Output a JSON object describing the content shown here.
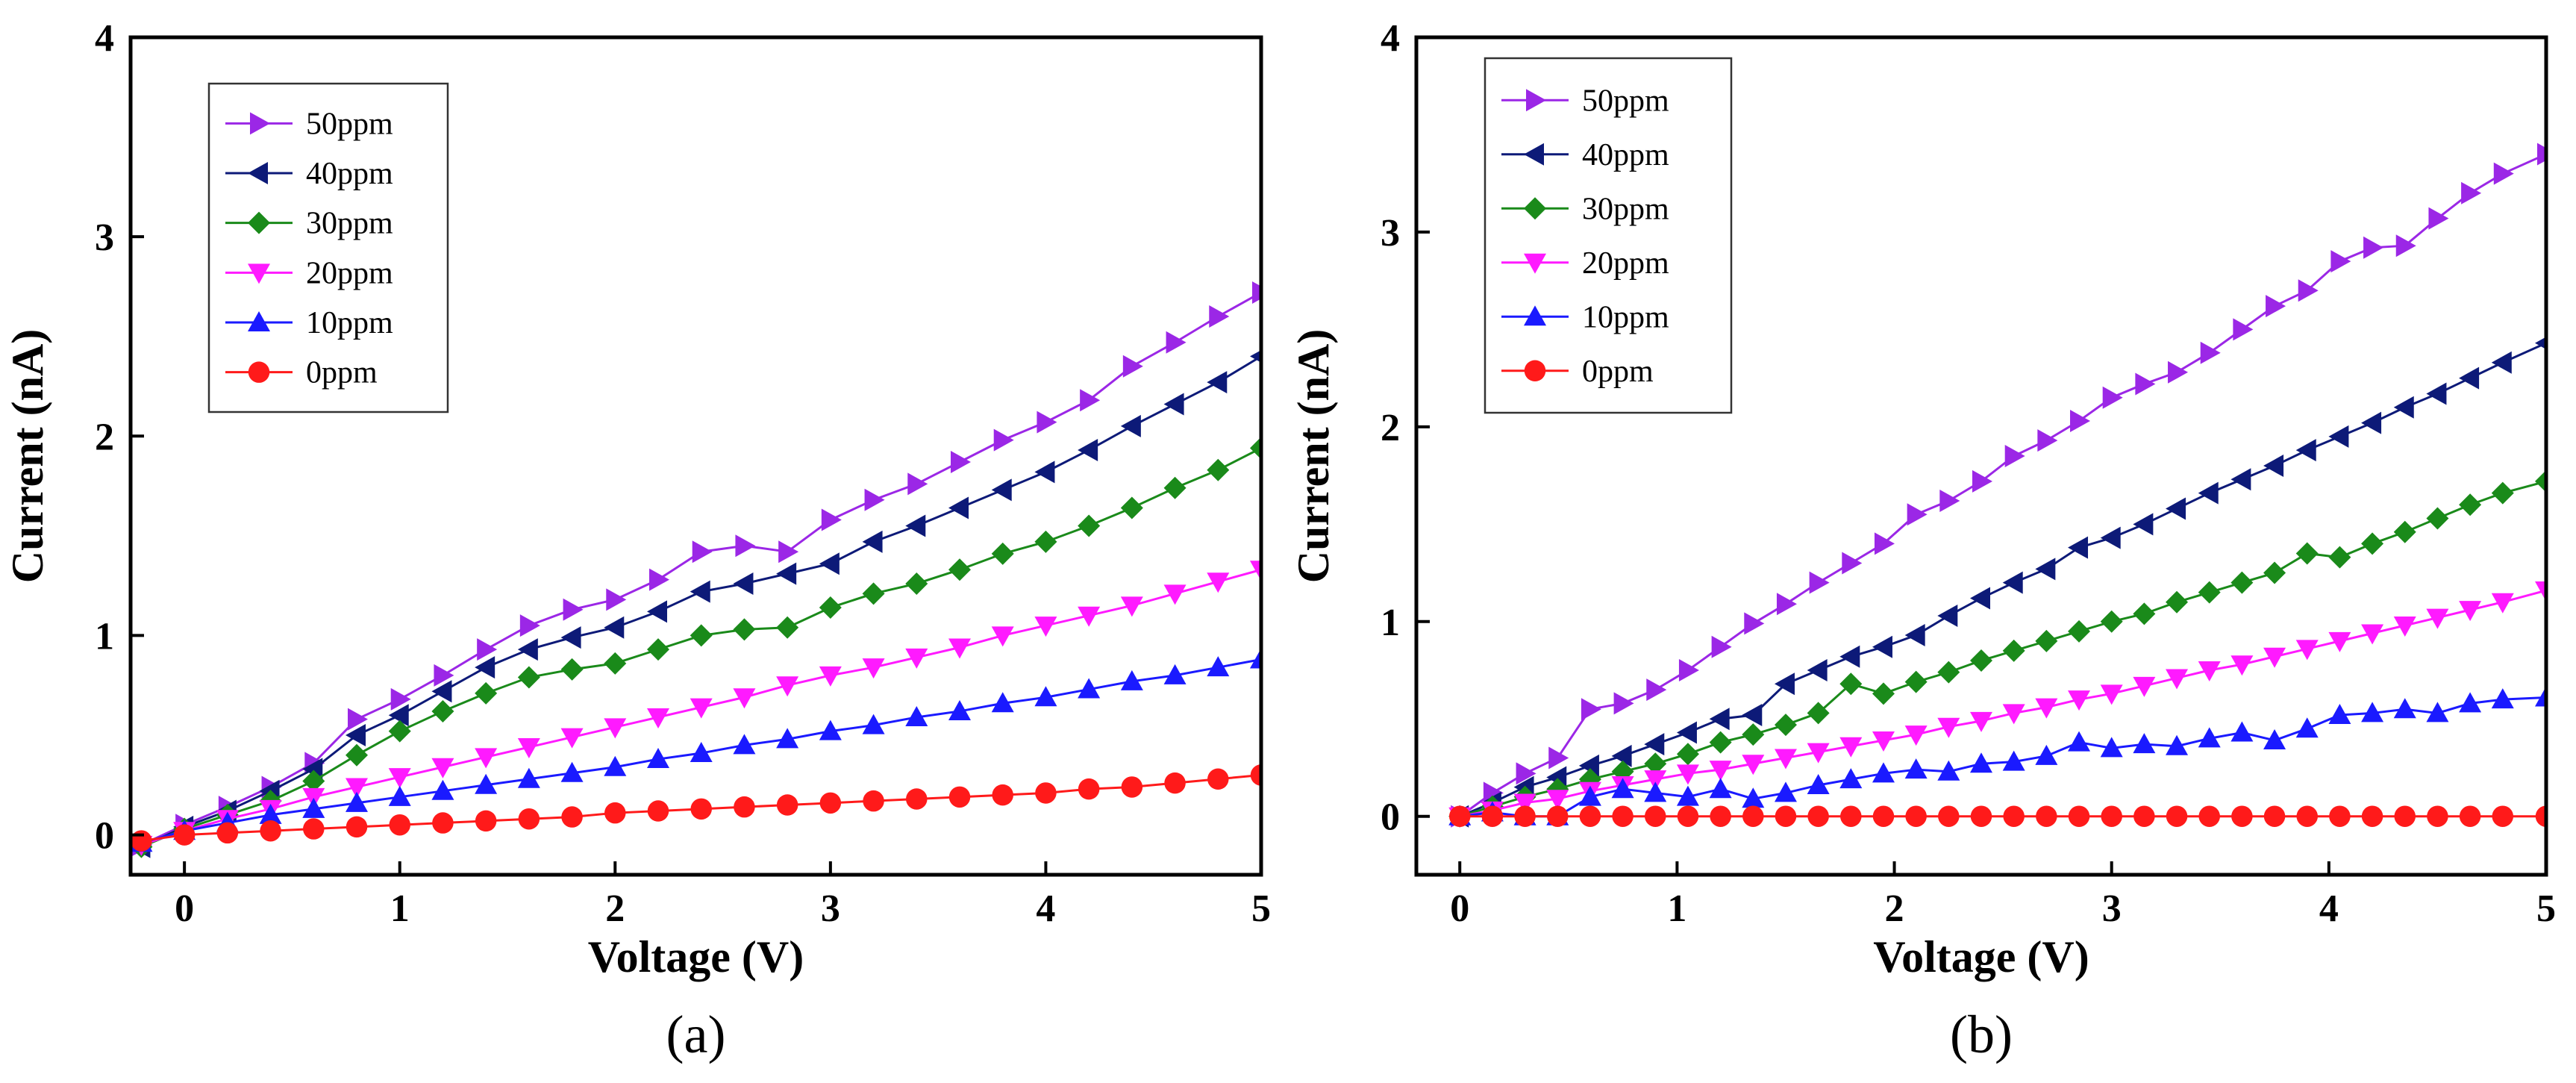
{
  "chart_data": [
    {
      "type": "line",
      "panel_label": "(a)",
      "xlabel": "Voltage (V)",
      "ylabel": "Current (nA)",
      "xlim": [
        -0.25,
        5
      ],
      "ylim": [
        -0.2,
        4
      ],
      "xticks": [
        0,
        1,
        2,
        3,
        4,
        5
      ],
      "yticks": [
        0,
        1,
        2,
        3,
        4
      ],
      "legend_position": "top-left",
      "grid": false,
      "series": [
        {
          "name": "50ppm",
          "marker": "triangle-right",
          "color": "#9b27e6",
          "x": [
            -0.2,
            0,
            0.2,
            0.4,
            0.6,
            0.8,
            1.0,
            1.2,
            1.4,
            1.6,
            1.8,
            2.0,
            2.2,
            2.4,
            2.6,
            2.8,
            3.0,
            3.2,
            3.4,
            3.6,
            3.8,
            4.0,
            4.2,
            4.4,
            4.6,
            4.8,
            5.0
          ],
          "y": [
            -0.05,
            0.05,
            0.14,
            0.24,
            0.36,
            0.58,
            0.68,
            0.8,
            0.93,
            1.05,
            1.13,
            1.18,
            1.28,
            1.42,
            1.45,
            1.42,
            1.58,
            1.68,
            1.76,
            1.87,
            1.98,
            2.07,
            2.18,
            2.35,
            2.47,
            2.6,
            2.72
          ]
        },
        {
          "name": "40ppm",
          "marker": "triangle-left",
          "color": "#0d1a78",
          "x": [
            -0.2,
            0,
            0.2,
            0.4,
            0.6,
            0.8,
            1.0,
            1.2,
            1.4,
            1.6,
            1.8,
            2.0,
            2.2,
            2.4,
            2.6,
            2.8,
            3.0,
            3.2,
            3.4,
            3.6,
            3.8,
            4.0,
            4.2,
            4.4,
            4.6,
            4.8,
            5.0
          ],
          "y": [
            -0.06,
            0.04,
            0.12,
            0.22,
            0.33,
            0.5,
            0.6,
            0.72,
            0.84,
            0.93,
            0.99,
            1.04,
            1.12,
            1.22,
            1.26,
            1.31,
            1.36,
            1.47,
            1.55,
            1.64,
            1.73,
            1.82,
            1.93,
            2.05,
            2.16,
            2.27,
            2.4
          ]
        },
        {
          "name": "30ppm",
          "marker": "diamond",
          "color": "#1a8a1a",
          "x": [
            -0.2,
            0,
            0.2,
            0.4,
            0.6,
            0.8,
            1.0,
            1.2,
            1.4,
            1.6,
            1.8,
            2.0,
            2.2,
            2.4,
            2.6,
            2.8,
            3.0,
            3.2,
            3.4,
            3.6,
            3.8,
            4.0,
            4.2,
            4.4,
            4.6,
            4.8,
            5.0
          ],
          "y": [
            -0.06,
            0.03,
            0.1,
            0.17,
            0.27,
            0.4,
            0.52,
            0.62,
            0.71,
            0.79,
            0.83,
            0.86,
            0.93,
            1.0,
            1.03,
            1.04,
            1.14,
            1.21,
            1.26,
            1.33,
            1.41,
            1.47,
            1.55,
            1.64,
            1.74,
            1.83,
            1.94
          ]
        },
        {
          "name": "20ppm",
          "marker": "triangle-down",
          "color": "#ff1aff",
          "x": [
            -0.2,
            0,
            0.2,
            0.4,
            0.6,
            0.8,
            1.0,
            1.2,
            1.4,
            1.6,
            1.8,
            2.0,
            2.2,
            2.4,
            2.6,
            2.8,
            3.0,
            3.2,
            3.4,
            3.6,
            3.8,
            4.0,
            4.2,
            4.4,
            4.6,
            4.8,
            5.0
          ],
          "y": [
            -0.05,
            0.02,
            0.08,
            0.13,
            0.19,
            0.24,
            0.29,
            0.34,
            0.39,
            0.44,
            0.49,
            0.54,
            0.59,
            0.64,
            0.69,
            0.75,
            0.8,
            0.84,
            0.89,
            0.94,
            1.0,
            1.05,
            1.1,
            1.15,
            1.21,
            1.27,
            1.33
          ]
        },
        {
          "name": "10ppm",
          "marker": "triangle-up",
          "color": "#1a1aff",
          "x": [
            -0.2,
            0,
            0.2,
            0.4,
            0.6,
            0.8,
            1.0,
            1.2,
            1.4,
            1.6,
            1.8,
            2.0,
            2.2,
            2.4,
            2.6,
            2.8,
            3.0,
            3.2,
            3.4,
            3.6,
            3.8,
            4.0,
            4.2,
            4.4,
            4.6,
            4.8,
            5.0
          ],
          "y": [
            -0.04,
            0.02,
            0.06,
            0.1,
            0.13,
            0.16,
            0.19,
            0.22,
            0.25,
            0.28,
            0.31,
            0.34,
            0.38,
            0.41,
            0.45,
            0.48,
            0.52,
            0.55,
            0.59,
            0.62,
            0.66,
            0.69,
            0.73,
            0.77,
            0.8,
            0.84,
            0.88
          ]
        },
        {
          "name": "0ppm",
          "marker": "circle",
          "color": "#ff1a1a",
          "x": [
            -0.2,
            0,
            0.2,
            0.4,
            0.6,
            0.8,
            1.0,
            1.2,
            1.4,
            1.6,
            1.8,
            2.0,
            2.2,
            2.4,
            2.6,
            2.8,
            3.0,
            3.2,
            3.4,
            3.6,
            3.8,
            4.0,
            4.2,
            4.4,
            4.6,
            4.8,
            5.0
          ],
          "y": [
            -0.03,
            0.0,
            0.01,
            0.02,
            0.03,
            0.04,
            0.05,
            0.06,
            0.07,
            0.08,
            0.09,
            0.11,
            0.12,
            0.13,
            0.14,
            0.15,
            0.16,
            0.17,
            0.18,
            0.19,
            0.2,
            0.21,
            0.23,
            0.24,
            0.26,
            0.28,
            0.3
          ]
        }
      ]
    },
    {
      "type": "line",
      "panel_label": "(b)",
      "xlabel": "Voltage (V)",
      "ylabel": "Current (nA)",
      "xlim": [
        -0.2,
        5
      ],
      "ylim": [
        -0.3,
        4
      ],
      "xticks": [
        0,
        1,
        2,
        3,
        4,
        5
      ],
      "yticks": [
        0,
        1,
        2,
        3,
        4
      ],
      "legend_position": "top-left",
      "grid": false,
      "series": [
        {
          "name": "50ppm",
          "marker": "triangle-right",
          "color": "#9b27e6",
          "x": [
            0,
            0.15,
            0.3,
            0.45,
            0.6,
            0.75,
            0.9,
            1.05,
            1.2,
            1.35,
            1.5,
            1.65,
            1.8,
            1.95,
            2.1,
            2.25,
            2.4,
            2.55,
            2.7,
            2.85,
            3.0,
            3.15,
            3.3,
            3.45,
            3.6,
            3.75,
            3.9,
            4.05,
            4.2,
            4.35,
            4.5,
            4.65,
            4.8,
            5.0
          ],
          "y": [
            0.0,
            0.12,
            0.22,
            0.3,
            0.55,
            0.58,
            0.65,
            0.75,
            0.87,
            0.99,
            1.09,
            1.2,
            1.3,
            1.4,
            1.55,
            1.62,
            1.72,
            1.85,
            1.93,
            2.03,
            2.15,
            2.22,
            2.28,
            2.38,
            2.5,
            2.62,
            2.7,
            2.85,
            2.92,
            2.93,
            3.07,
            3.2,
            3.3,
            3.4
          ]
        },
        {
          "name": "40ppm",
          "marker": "triangle-left",
          "color": "#0d1a78",
          "x": [
            0,
            0.15,
            0.3,
            0.45,
            0.6,
            0.75,
            0.9,
            1.05,
            1.2,
            1.35,
            1.5,
            1.65,
            1.8,
            1.95,
            2.1,
            2.25,
            2.4,
            2.55,
            2.7,
            2.85,
            3.0,
            3.15,
            3.3,
            3.45,
            3.6,
            3.75,
            3.9,
            4.05,
            4.2,
            4.35,
            4.5,
            4.65,
            4.8,
            5.0
          ],
          "y": [
            0.0,
            0.07,
            0.15,
            0.2,
            0.26,
            0.31,
            0.37,
            0.43,
            0.5,
            0.52,
            0.68,
            0.75,
            0.82,
            0.87,
            0.93,
            1.03,
            1.12,
            1.2,
            1.27,
            1.38,
            1.43,
            1.5,
            1.58,
            1.66,
            1.73,
            1.8,
            1.88,
            1.95,
            2.02,
            2.1,
            2.17,
            2.25,
            2.33,
            2.43
          ]
        },
        {
          "name": "30ppm",
          "marker": "diamond",
          "color": "#1a8a1a",
          "x": [
            0,
            0.15,
            0.3,
            0.45,
            0.6,
            0.75,
            0.9,
            1.05,
            1.2,
            1.35,
            1.5,
            1.65,
            1.8,
            1.95,
            2.1,
            2.25,
            2.4,
            2.55,
            2.7,
            2.85,
            3.0,
            3.15,
            3.3,
            3.45,
            3.6,
            3.75,
            3.9,
            4.05,
            4.2,
            4.35,
            4.5,
            4.65,
            4.8,
            5.0
          ],
          "y": [
            0.0,
            0.05,
            0.1,
            0.14,
            0.19,
            0.23,
            0.27,
            0.32,
            0.38,
            0.42,
            0.47,
            0.53,
            0.68,
            0.63,
            0.69,
            0.74,
            0.8,
            0.85,
            0.9,
            0.95,
            1.0,
            1.04,
            1.1,
            1.15,
            1.2,
            1.25,
            1.35,
            1.33,
            1.4,
            1.46,
            1.53,
            1.6,
            1.66,
            1.72
          ]
        },
        {
          "name": "20ppm",
          "marker": "triangle-down",
          "color": "#ff1aff",
          "x": [
            0,
            0.15,
            0.3,
            0.45,
            0.6,
            0.75,
            0.9,
            1.05,
            1.2,
            1.35,
            1.5,
            1.65,
            1.8,
            1.95,
            2.1,
            2.25,
            2.4,
            2.55,
            2.7,
            2.85,
            3.0,
            3.15,
            3.3,
            3.45,
            3.6,
            3.75,
            3.9,
            4.05,
            4.2,
            4.35,
            4.5,
            4.65,
            4.8,
            5.0
          ],
          "y": [
            0.0,
            0.03,
            0.07,
            0.09,
            0.13,
            0.16,
            0.19,
            0.22,
            0.24,
            0.27,
            0.3,
            0.33,
            0.36,
            0.39,
            0.42,
            0.46,
            0.49,
            0.53,
            0.56,
            0.6,
            0.63,
            0.67,
            0.71,
            0.75,
            0.78,
            0.82,
            0.86,
            0.9,
            0.94,
            0.98,
            1.02,
            1.06,
            1.1,
            1.16
          ]
        },
        {
          "name": "10ppm",
          "marker": "triangle-up",
          "color": "#1a1aff",
          "x": [
            0,
            0.15,
            0.3,
            0.45,
            0.6,
            0.75,
            0.9,
            1.05,
            1.2,
            1.35,
            1.5,
            1.65,
            1.8,
            1.95,
            2.1,
            2.25,
            2.4,
            2.55,
            2.7,
            2.85,
            3.0,
            3.15,
            3.3,
            3.45,
            3.6,
            3.75,
            3.9,
            4.05,
            4.2,
            4.35,
            4.5,
            4.65,
            4.8,
            5.0
          ],
          "y": [
            0.0,
            0.02,
            0.0,
            0.0,
            0.1,
            0.14,
            0.12,
            0.1,
            0.14,
            0.09,
            0.12,
            0.16,
            0.19,
            0.22,
            0.24,
            0.23,
            0.27,
            0.28,
            0.31,
            0.38,
            0.35,
            0.37,
            0.36,
            0.4,
            0.43,
            0.39,
            0.45,
            0.52,
            0.53,
            0.55,
            0.53,
            0.58,
            0.6,
            0.61
          ]
        },
        {
          "name": "0ppm",
          "marker": "circle",
          "color": "#ff1a1a",
          "x": [
            0,
            0.15,
            0.3,
            0.45,
            0.6,
            0.75,
            0.9,
            1.05,
            1.2,
            1.35,
            1.5,
            1.65,
            1.8,
            1.95,
            2.1,
            2.25,
            2.4,
            2.55,
            2.7,
            2.85,
            3.0,
            3.15,
            3.3,
            3.45,
            3.6,
            3.75,
            3.9,
            4.05,
            4.2,
            4.35,
            4.5,
            4.65,
            4.8,
            5.0
          ],
          "y": [
            0.0,
            0.0,
            0.0,
            0.0,
            0.0,
            0.0,
            0.0,
            0.0,
            0.0,
            0.0,
            0.0,
            0.0,
            0.0,
            0.0,
            0.0,
            0.0,
            0.0,
            0.0,
            0.0,
            0.0,
            0.0,
            0.0,
            0.0,
            0.0,
            0.0,
            0.0,
            0.0,
            0.0,
            0.0,
            0.0,
            0.0,
            0.0,
            0.0,
            0.0
          ]
        }
      ]
    }
  ]
}
